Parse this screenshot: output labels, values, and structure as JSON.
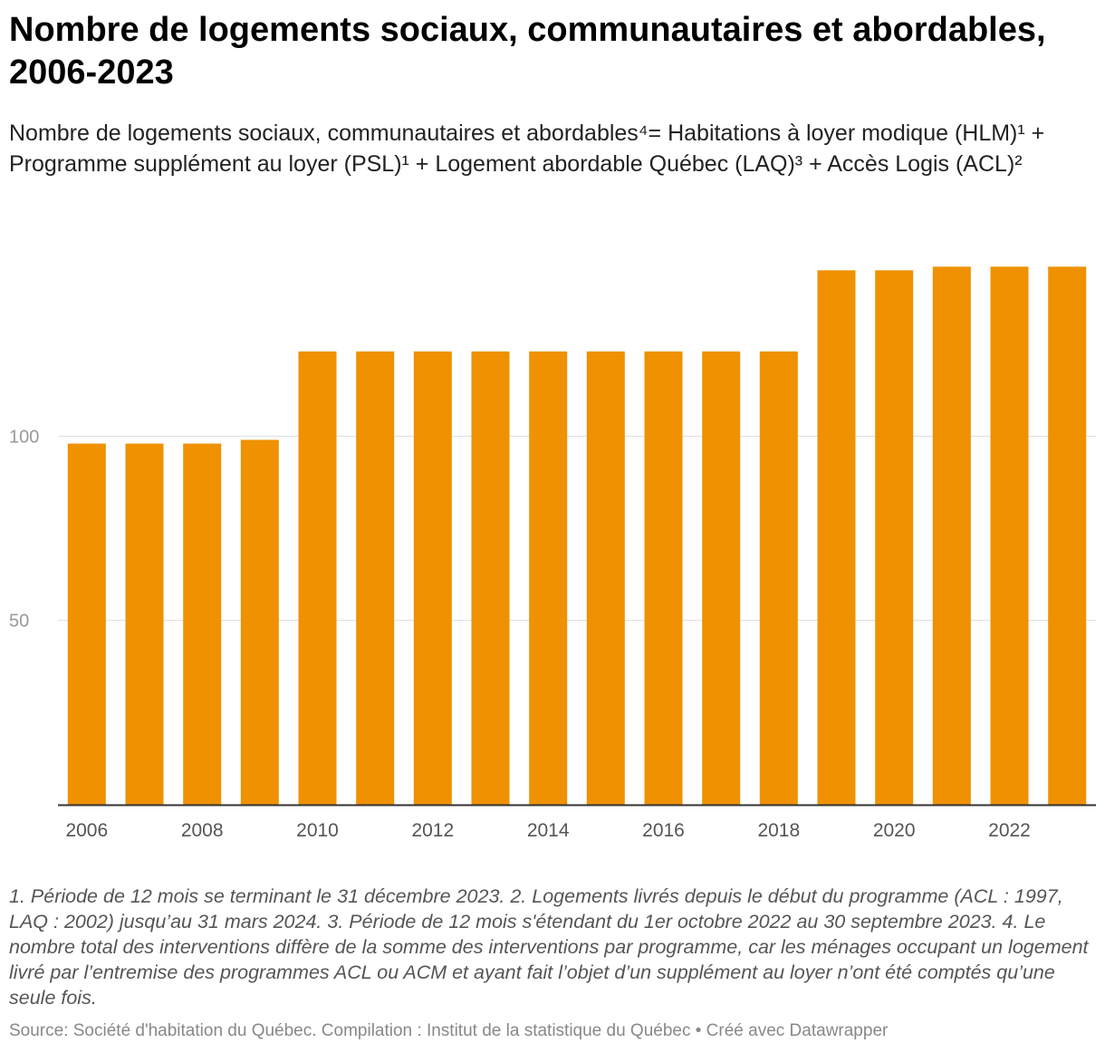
{
  "header": {
    "title": "Nombre de logements sociaux, communautaires et abordables, 2006-2023",
    "subtitle": "Nombre de logements sociaux, communautaires et abordables⁴= Habitations à loyer modique (HLM)¹ + Programme supplément au loyer (PSL)¹ + Logement abordable Québec (LAQ)³ + Accès Logis (ACL)²"
  },
  "chart_data": {
    "type": "bar",
    "title": "Nombre de logements sociaux, communautaires et abordables, 2006-2023",
    "xlabel": "",
    "ylabel": "",
    "categories": [
      "2006",
      "2007",
      "2008",
      "2009",
      "2010",
      "2011",
      "2012",
      "2013",
      "2014",
      "2015",
      "2016",
      "2017",
      "2018",
      "2019",
      "2020",
      "2021",
      "2022",
      "2023"
    ],
    "values": [
      98,
      98,
      98,
      99,
      123,
      123,
      123,
      123,
      123,
      123,
      123,
      123,
      123,
      145,
      145,
      146,
      146,
      146
    ],
    "x_tick_labels": [
      "2006",
      "2008",
      "2010",
      "2012",
      "2014",
      "2016",
      "2018",
      "2020",
      "2022"
    ],
    "y_ticks": [
      50,
      100
    ],
    "y_tick_labels": [
      "50",
      "100"
    ],
    "ylim": [
      0,
      150
    ],
    "grid": true,
    "legend": "none",
    "bar_color": "#ef9100"
  },
  "footer": {
    "notes": "1. Période de 12 mois se terminant le 31 décembre 2023. 2. Logements livrés depuis le début du programme (ACL : 1997, LAQ : 2002) jusqu’au 31 mars 2024. 3. Période de 12 mois s'étendant du 1er octobre 2022 au 30 septembre 2023. 4. Le nombre total des interventions diffère de la somme des interventions par programme, car les ménages occupant un logement livré par l’entremise des programmes ACL ou ACM et ayant fait l’objet d’un supplément au loyer n’ont été comptés qu’une seule fois.",
    "source": "Source: Société d'habitation du Québec. Compilation : Institut de la statistique du Québec • Créé avec Datawrapper"
  }
}
